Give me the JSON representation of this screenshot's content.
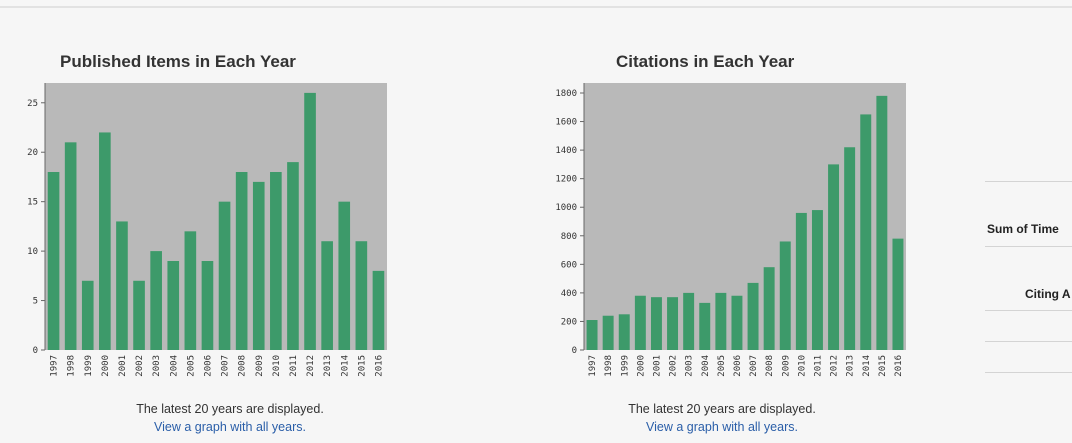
{
  "colors": {
    "bar": "#3d9a6a",
    "plot_bg": "#b9b9b9",
    "link": "#2a5ea8"
  },
  "chart_data": [
    {
      "type": "bar",
      "title": "Published Items in Each Year",
      "categories": [
        "1997",
        "1998",
        "1999",
        "2000",
        "2001",
        "2002",
        "2003",
        "2004",
        "2005",
        "2006",
        "2007",
        "2008",
        "2009",
        "2010",
        "2011",
        "2012",
        "2013",
        "2014",
        "2015",
        "2016"
      ],
      "values": [
        18,
        21,
        7,
        22,
        13,
        7,
        10,
        9,
        12,
        9,
        15,
        18,
        17,
        18,
        19,
        26,
        11,
        15,
        11,
        8
      ],
      "ylim": [
        0,
        27
      ],
      "yticks": [
        0,
        5,
        10,
        15,
        20,
        25
      ],
      "xlabel": "",
      "ylabel": ""
    },
    {
      "type": "bar",
      "title": "Citations in Each Year",
      "categories": [
        "1997",
        "1998",
        "1999",
        "2000",
        "2001",
        "2002",
        "2003",
        "2004",
        "2005",
        "2006",
        "2007",
        "2008",
        "2009",
        "2010",
        "2011",
        "2012",
        "2013",
        "2014",
        "2015",
        "2016"
      ],
      "values": [
        210,
        240,
        250,
        380,
        370,
        370,
        400,
        330,
        400,
        380,
        470,
        580,
        760,
        960,
        980,
        1300,
        1420,
        1650,
        1780,
        780
      ],
      "ylim": [
        0,
        1870
      ],
      "yticks": [
        0,
        200,
        400,
        600,
        800,
        1000,
        1200,
        1400,
        1600,
        1800
      ],
      "xlabel": "",
      "ylabel": ""
    }
  ],
  "captions": [
    {
      "note": "The latest 20 years are displayed.",
      "link": "View a graph with all years."
    },
    {
      "note": "The latest 20 years are displayed.",
      "link": "View a graph with all years."
    }
  ],
  "right_panel": {
    "sum_label": "Sum of Time",
    "citing_label": "Citing A"
  }
}
